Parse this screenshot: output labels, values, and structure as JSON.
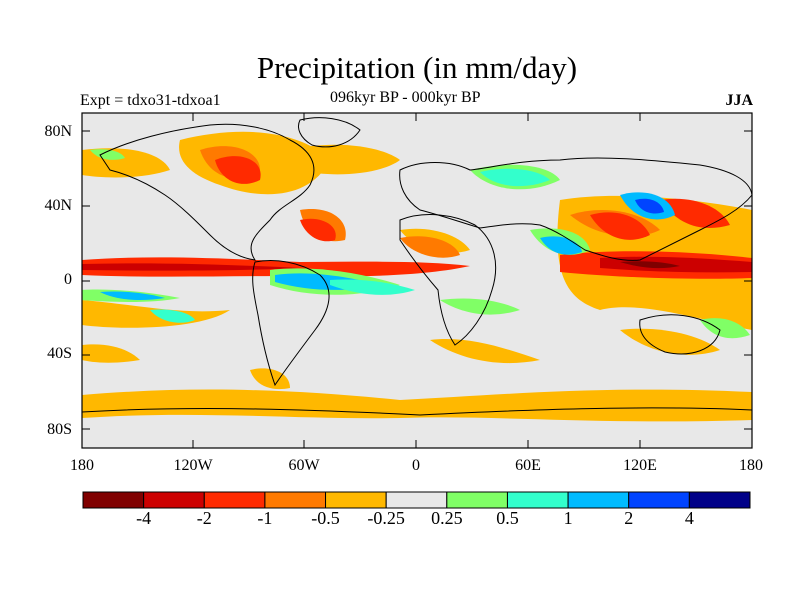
{
  "title": "Precipitation (in mm/day)",
  "experiment": "Expt = tdxo31-tdxoa1",
  "period": "096kyr BP - 000kyr BP",
  "season": "JJA",
  "lat_labels": [
    "80N",
    "40N",
    "0",
    "40S",
    "80S"
  ],
  "lon_labels": [
    "180",
    "120W",
    "60W",
    "0",
    "60E",
    "120E",
    "180"
  ],
  "colorbar": {
    "colors": [
      "#800000",
      "#cc0000",
      "#ff2a00",
      "#ff7a00",
      "#ffb800",
      "#e8e8e8",
      "#80ff66",
      "#33ffcc",
      "#00bbff",
      "#0044ff",
      "#000088"
    ],
    "labels": [
      "-4",
      "-2",
      "-1",
      "-0.5",
      "-0.25",
      "0.25",
      "0.5",
      "1",
      "2",
      "4"
    ]
  },
  "map": {
    "background": "#e8e8e8",
    "frame_color": "#000000",
    "coast_color": "#000000"
  }
}
